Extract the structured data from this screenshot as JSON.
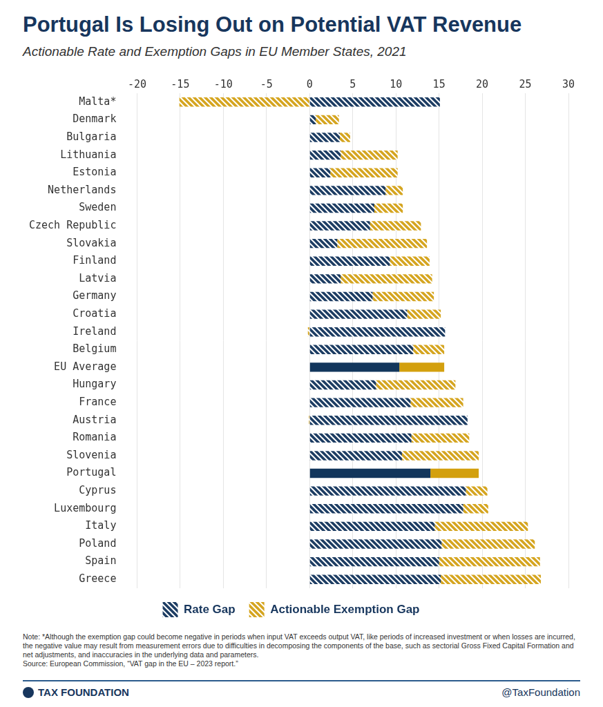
{
  "chart_data": {
    "type": "bar",
    "orientation": "horizontal",
    "stacked": true,
    "title": "Portugal Is Losing Out on Potential VAT Revenue",
    "subtitle": "Actionable Rate and Exemption Gaps in EU Member States, 2021",
    "note": "Note: *Although the exemption gap could become negative in periods when input VAT exceeds output VAT, like periods of increased investment or when losses are incurred, the negative value may result from measurement errors due to difficulties in decomposing the components of the base, such as sectorial Gross Fixed Capital Formation and net adjustments, and inaccuracies in the underlying data and parameters.",
    "source": "Source: European Commission, “VAT gap in the EU – 2023 report.”",
    "footer_left": "TAX FOUNDATION",
    "footer_right": "@TaxFoundation",
    "categories": [
      "Malta*",
      "Denmark",
      "Bulgaria",
      "Lithuania",
      "Estonia",
      "Netherlands",
      "Sweden",
      "Czech Republic",
      "Slovakia",
      "Finland",
      "Latvia",
      "Germany",
      "Croatia",
      "Ireland",
      "Belgium",
      "EU Average",
      "Hungary",
      "France",
      "Austria",
      "Romania",
      "Slovenia",
      "Portugal",
      "Cyprus",
      "Luxembourg",
      "Italy",
      "Poland",
      "Spain",
      "Greece"
    ],
    "series": [
      {
        "name": "Rate Gap",
        "color": "#1d3d63",
        "colors": [
          "#1d3d63",
          "#1d3d63",
          "#1d3d63",
          "#1d3d63",
          "#1d3d63",
          "#1d3d63",
          "#1d3d63",
          "#1d3d63",
          "#1d3d63",
          "#1d3d63",
          "#1d3d63",
          "#1d3d63",
          "#1d3d63",
          "#1d3d63",
          "#1d3d63",
          "#12365c",
          "#1d3d63",
          "#1d3d63",
          "#1d3d63",
          "#1d3d63",
          "#1d3d63",
          "#12365c",
          "#1d3d63",
          "#1d3d63",
          "#1d3d63",
          "#1d3d63",
          "#1d3d63",
          "#1d3d63"
        ],
        "values": [
          15.1,
          0.7,
          3.5,
          3.6,
          2.4,
          8.8,
          7.5,
          7.0,
          3.2,
          9.3,
          3.6,
          7.3,
          11.3,
          15.7,
          12.0,
          10.4,
          7.7,
          11.7,
          18.3,
          11.8,
          10.7,
          14.0,
          18.1,
          17.8,
          14.5,
          15.3,
          15.0,
          15.2
        ]
      },
      {
        "name": "Actionable Exemption Gap",
        "color": "#d5a520",
        "colors": [
          "#d5a520",
          "#d5a520",
          "#d5a520",
          "#d5a520",
          "#d5a520",
          "#d5a520",
          "#d5a520",
          "#d5a520",
          "#d5a520",
          "#d5a520",
          "#d5a520",
          "#d5a520",
          "#d5a520",
          "#d5a520",
          "#d5a520",
          "#d3a00e",
          "#d5a520",
          "#d5a520",
          "#d5a520",
          "#d5a520",
          "#d5a520",
          "#d3a00e",
          "#d5a520",
          "#d5a520",
          "#d5a520",
          "#d5a520",
          "#d5a520",
          "#d5a520"
        ],
        "values": [
          -15.1,
          2.7,
          1.2,
          6.6,
          7.8,
          2.0,
          3.3,
          5.9,
          10.4,
          4.6,
          10.6,
          7.1,
          3.9,
          -0.2,
          3.6,
          5.2,
          9.2,
          6.1,
          -0.1,
          6.7,
          8.9,
          5.6,
          2.5,
          2.9,
          10.8,
          10.8,
          11.7,
          11.6
        ]
      }
    ],
    "xlim": [
      -20,
      30
    ],
    "xticks": [
      -20,
      -15,
      -10,
      -5,
      0,
      5,
      10,
      15,
      20,
      25,
      30
    ],
    "grid": true,
    "legend": "bottom",
    "data_labels": false
  }
}
